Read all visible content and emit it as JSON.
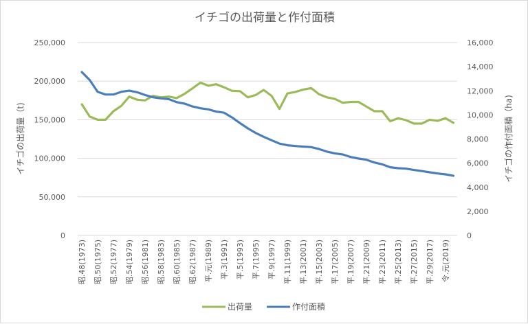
{
  "chart_data": {
    "type": "line",
    "title": "イチゴの出荷量と作付面積",
    "ylabel": "イチゴの出荷量（t)",
    "y2label": "イチゴの作付面積（ha)",
    "xlabel": "",
    "ylim": [
      0,
      250000
    ],
    "y2lim": [
      0,
      16000
    ],
    "yticks": [
      "0",
      "50,000",
      "100,000",
      "150,000",
      "200,000",
      "250,000"
    ],
    "y2ticks": [
      "0",
      "2,000",
      "4,000",
      "6,000",
      "8,000",
      "10,000",
      "12,000",
      "14,000",
      "16,000"
    ],
    "grid": true,
    "legend_position": "bottom",
    "x": [
      1973,
      1974,
      1975,
      1976,
      1977,
      1978,
      1979,
      1980,
      1981,
      1982,
      1983,
      1984,
      1985,
      1986,
      1987,
      1988,
      1989,
      1990,
      1991,
      1992,
      1993,
      1994,
      1995,
      1996,
      1997,
      1998,
      1999,
      2000,
      2001,
      2002,
      2003,
      2004,
      2005,
      2006,
      2007,
      2008,
      2009,
      2010,
      2011,
      2012,
      2013,
      2014,
      2015,
      2016,
      2017,
      2018,
      2019,
      2020
    ],
    "xtick_labels": [
      "昭.48(1973)",
      "昭.50(1975)",
      "昭.52(1977)",
      "昭.54(1979)",
      "昭.56(1981)",
      "昭.58(1983)",
      "昭.60(1985)",
      "昭.62(1987)",
      "平.元(1989)",
      "平.3(1991)",
      "平.5(1993)",
      "平.7(1995)",
      "平.9(1997)",
      "平.11(1999)",
      "平.13(2001)",
      "平.15(2003)",
      "平.17(2005)",
      "平.19(2007)",
      "平.21(2009)",
      "平.23(2011)",
      "平.25(2013)",
      "平.27(2015)",
      "平.29(2017)",
      "令.元(2019)"
    ],
    "series": [
      {
        "name": "出荷量",
        "axis": "left",
        "color": "#9bbb59",
        "values": [
          170000,
          154000,
          150000,
          150000,
          161000,
          168000,
          180000,
          176000,
          175000,
          181000,
          179000,
          180000,
          178000,
          183500,
          190700,
          198000,
          194000,
          196000,
          192000,
          187500,
          187000,
          179000,
          182000,
          188600,
          181000,
          164000,
          184000,
          186000,
          189000,
          191000,
          183000,
          179000,
          177000,
          172000,
          173000,
          173000,
          167000,
          161000,
          161000,
          148000,
          152000,
          149500,
          145000,
          145000,
          150000,
          148500,
          152000,
          146000
        ]
      },
      {
        "name": "作付面積",
        "axis": "right",
        "color": "#4a7ebb",
        "values": [
          13550,
          12890,
          11920,
          11690,
          11690,
          11920,
          12010,
          11880,
          11650,
          11460,
          11370,
          11310,
          11060,
          10930,
          10700,
          10550,
          10460,
          10270,
          10180,
          9790,
          9320,
          8880,
          8500,
          8180,
          7900,
          7620,
          7480,
          7420,
          7370,
          7330,
          7170,
          6950,
          6810,
          6720,
          6510,
          6380,
          6280,
          6050,
          5900,
          5660,
          5580,
          5540,
          5430,
          5340,
          5240,
          5140,
          5070,
          4950
        ]
      }
    ]
  }
}
